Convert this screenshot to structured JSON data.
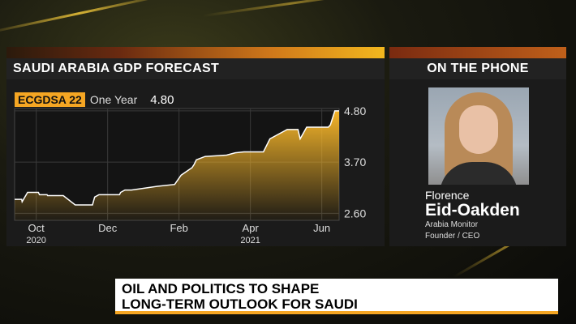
{
  "chart_panel": {
    "title": "SAUDI ARABIA GDP FORECAST",
    "ticker": "ECGDSA 22",
    "period": "One Year",
    "value": "4.80"
  },
  "guest_panel": {
    "title": "ON THE PHONE",
    "first_name": "Florence",
    "last_name": "Eid-Oakden",
    "organization": "Arabia Monitor",
    "role": "Founder / CEO"
  },
  "headline": {
    "line1": "OIL AND POLITICS TO SHAPE",
    "line2": "LONG-TERM OUTLOOK FOR SAUDI"
  },
  "chart_data": {
    "type": "area",
    "y_ticks": [
      "4.80",
      "3.70",
      "2.60"
    ],
    "ylim": [
      2.45,
      4.85
    ],
    "x_ticks": [
      {
        "label": "Oct",
        "year": "2020"
      },
      {
        "label": "Dec",
        "year": ""
      },
      {
        "label": "Feb",
        "year": ""
      },
      {
        "label": "Apr",
        "year": "2021"
      },
      {
        "label": "Jun",
        "year": ""
      }
    ],
    "grid": true,
    "color": "#f5a623",
    "x": [
      0,
      6.5,
      7,
      12,
      22,
      23,
      30,
      30.5,
      45,
      56,
      72,
      74,
      78,
      97,
      98,
      102,
      108,
      132,
      148,
      154,
      164,
      166,
      168,
      176,
      196,
      204,
      212,
      230,
      236,
      244,
      252,
      262,
      264,
      270,
      290,
      292,
      296,
      300
    ],
    "values": [
      2.9,
      2.9,
      2.85,
      3.05,
      3.05,
      3.0,
      3.0,
      2.98,
      2.98,
      2.78,
      2.78,
      2.95,
      3.0,
      3.0,
      3.05,
      3.1,
      3.1,
      3.18,
      3.22,
      3.42,
      3.58,
      3.65,
      3.75,
      3.82,
      3.85,
      3.9,
      3.92,
      3.92,
      4.2,
      4.3,
      4.4,
      4.4,
      4.2,
      4.45,
      4.45,
      4.5,
      4.8,
      4.8
    ]
  },
  "colors": {
    "accent": "#f5a623",
    "panel_bg": "#1b1b1b",
    "title_bg": "#222222"
  }
}
